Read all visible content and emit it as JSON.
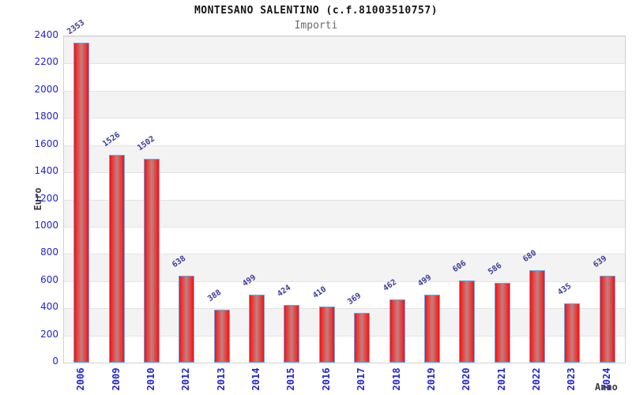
{
  "chart_data": {
    "type": "bar",
    "title": "MONTESANO SALENTINO (c.f.81003510757)",
    "subtitle": "Importi",
    "xlabel": "Anno",
    "ylabel": "Euro",
    "categories": [
      "2006",
      "2009",
      "2010",
      "2012",
      "2013",
      "2014",
      "2015",
      "2016",
      "2017",
      "2018",
      "2019",
      "2020",
      "2021",
      "2022",
      "2023",
      "2024"
    ],
    "values": [
      2353,
      1526,
      1502,
      638,
      388,
      499,
      424,
      410,
      369,
      462,
      499,
      606,
      586,
      680,
      435,
      639
    ],
    "ylim": [
      0,
      2400
    ],
    "ytick_step": 200,
    "grid": "horizontal-bands",
    "legend": "none",
    "colors": {
      "bar_fill": "#f31111",
      "bar_fill_center": "#c08080",
      "bar_border": "#6da6e6",
      "value_label": "#3a3a9a",
      "axis_tick_text": "#2323cf",
      "band_light": "#ffffff",
      "band_dark": "#f3f3f3",
      "gridline": "#e3e3e3",
      "title_text": "#151515",
      "subtitle_text": "#6b6b6b",
      "axis_name_text": "#3a3a3a"
    }
  }
}
